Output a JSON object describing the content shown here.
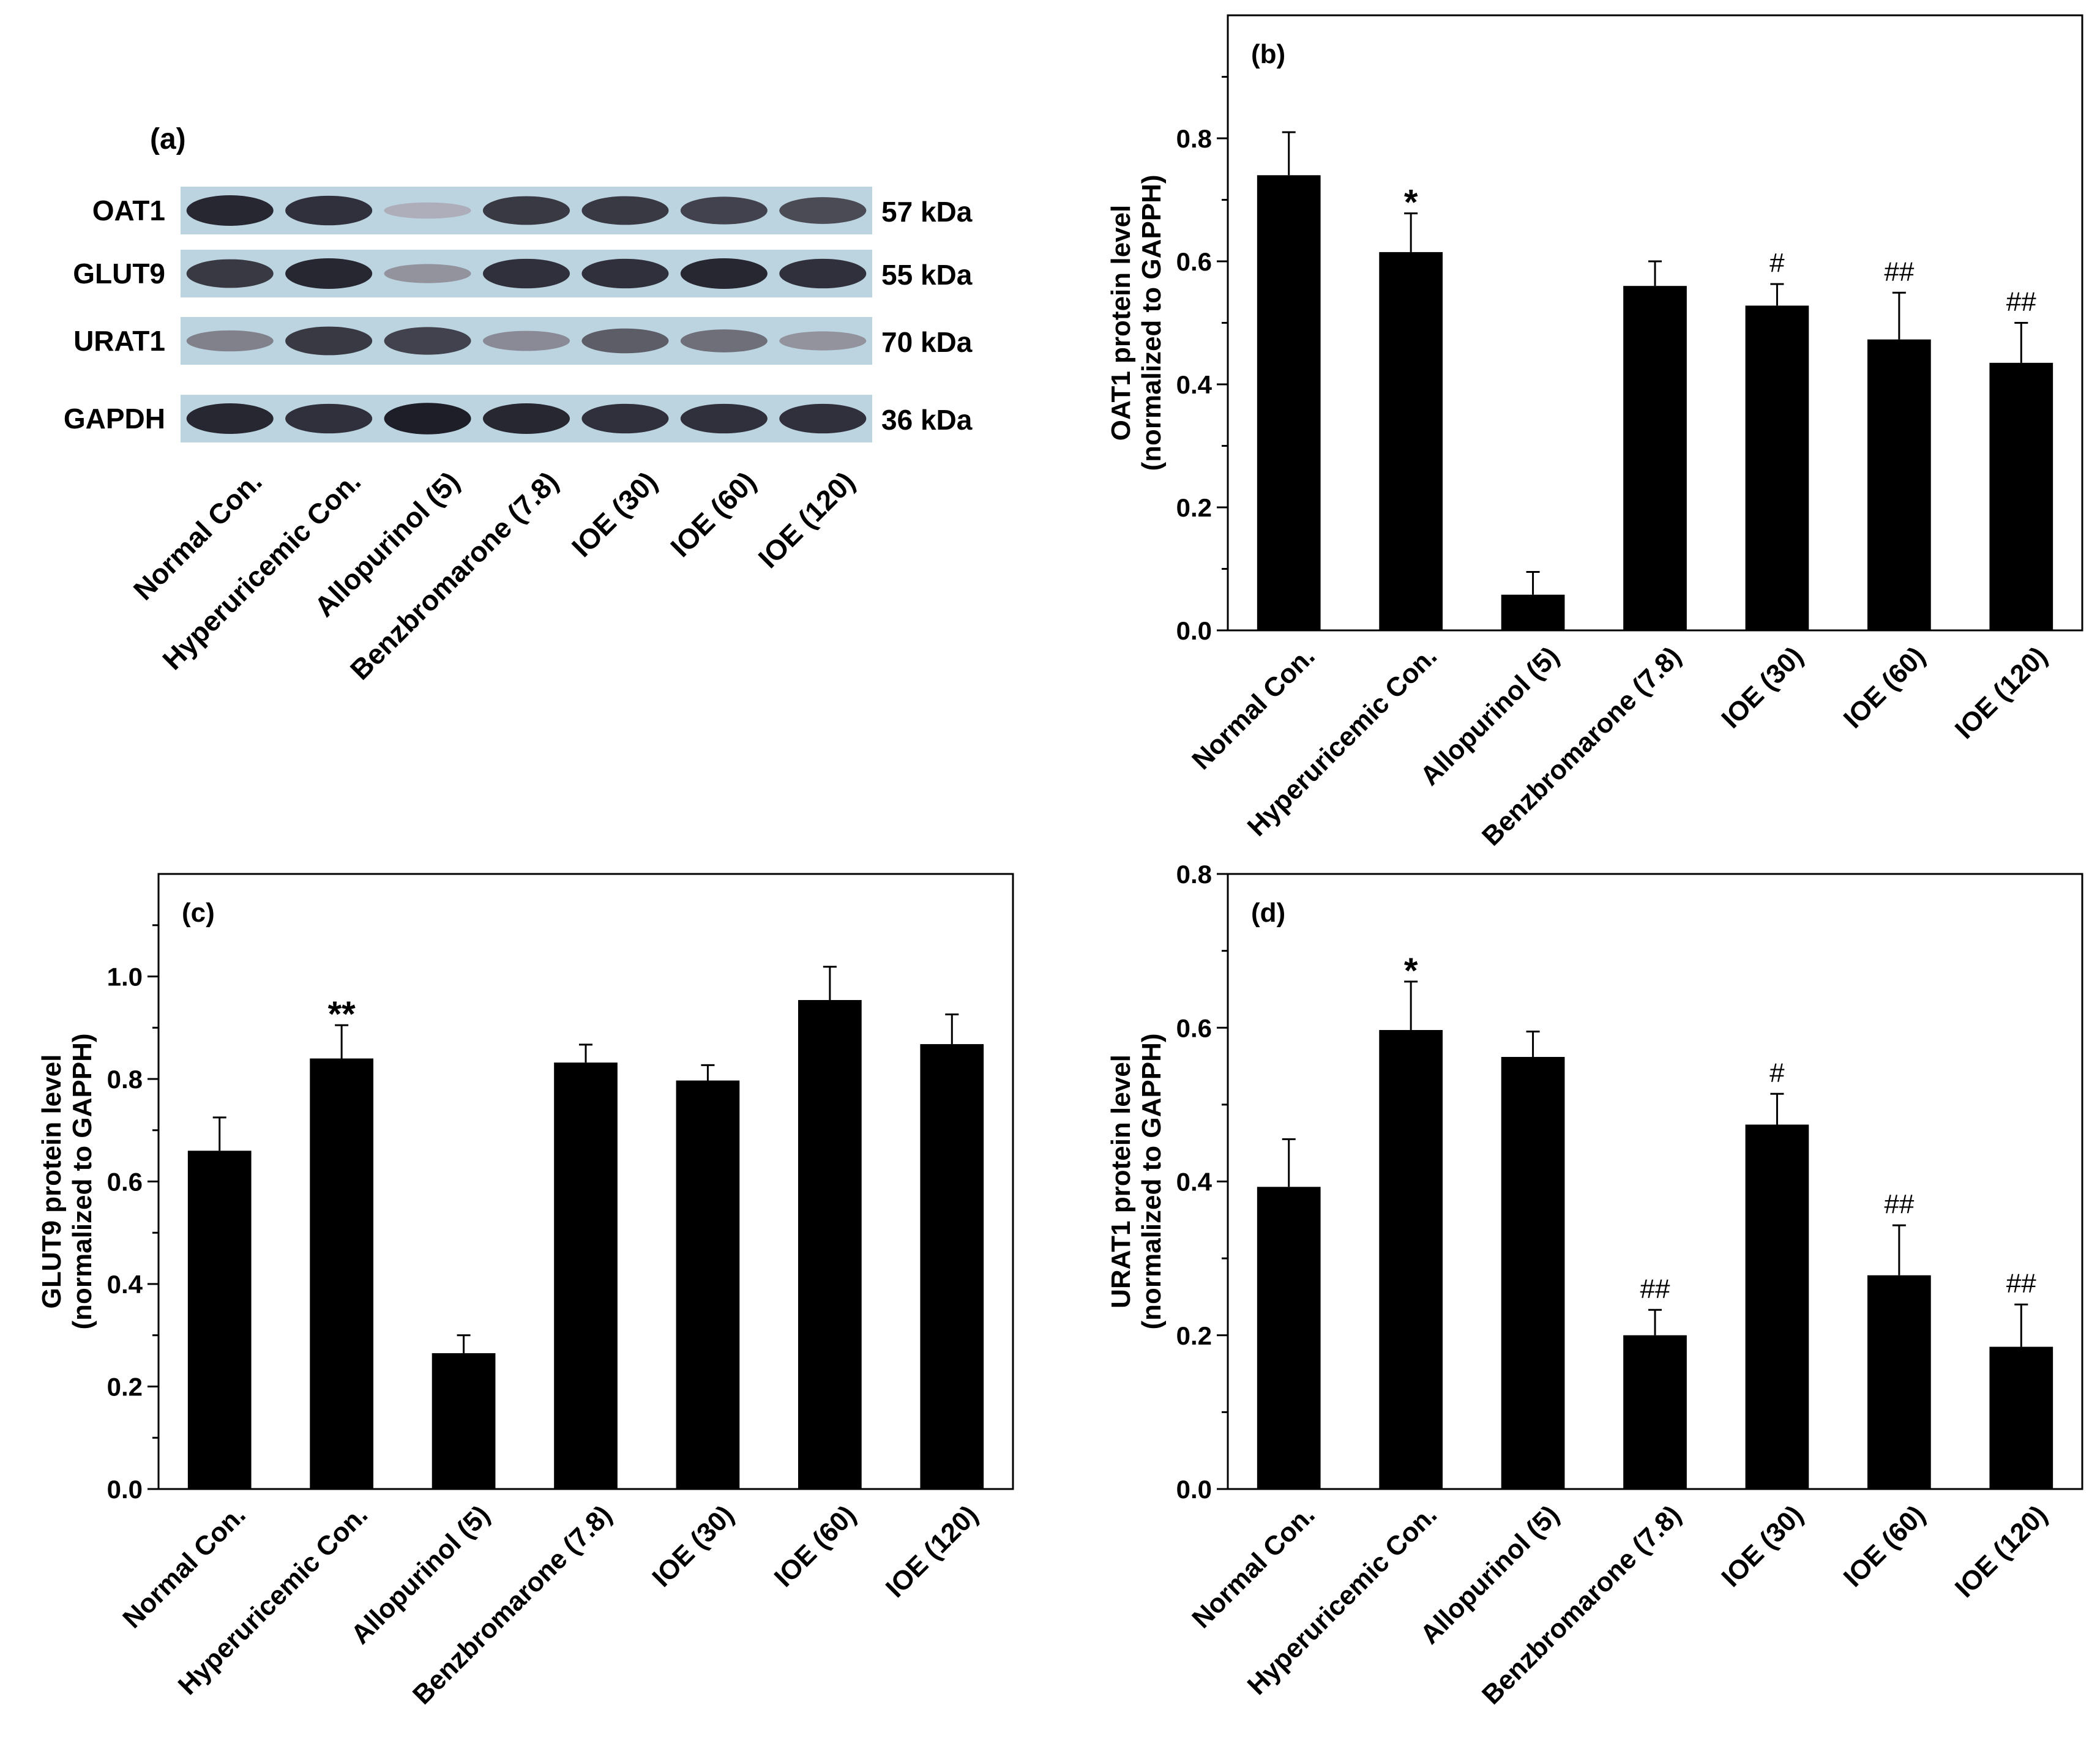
{
  "panel_a": {
    "label": "(a)",
    "categories": [
      "Normal Con.",
      "Hyperuricemic Con.",
      "Allopurinol  (5)",
      "Benzbromarone (7.8)",
      "IOE (30)",
      "IOE (60)",
      "IOE (120)"
    ],
    "rows": [
      {
        "protein": "OAT1",
        "size": "57 kDa",
        "intensity": [
          0.9,
          0.85,
          0.15,
          0.8,
          0.8,
          0.75,
          0.7
        ]
      },
      {
        "protein": "GLUT9",
        "size": "55 kDa",
        "intensity": [
          0.8,
          0.9,
          0.3,
          0.85,
          0.85,
          0.9,
          0.85
        ]
      },
      {
        "protein": "URAT1",
        "size": "70 kDa",
        "intensity": [
          0.4,
          0.8,
          0.75,
          0.35,
          0.6,
          0.5,
          0.3
        ]
      },
      {
        "protein": "GAPDH",
        "size": "36 kDa",
        "intensity": [
          0.9,
          0.85,
          0.95,
          0.9,
          0.85,
          0.85,
          0.85
        ]
      }
    ]
  },
  "chart_data": [
    {
      "type": "bar",
      "panel": "(b)",
      "ylabel_line1": "OAT1 protein level",
      "ylabel_line2": "(normalized to GAPPH)",
      "categories": [
        "Normal Con.",
        "Hyperuricemic Con.",
        "Allopurinol (5)",
        "Benzbromarone (7.8)",
        "IOE (30)",
        "IOE (60)",
        "IOE (120)"
      ],
      "values": [
        0.74,
        0.615,
        0.058,
        0.56,
        0.528,
        0.473,
        0.435
      ],
      "errors": [
        0.07,
        0.063,
        0.037,
        0.04,
        0.035,
        0.076,
        0.065
      ],
      "annotations": [
        "",
        "*",
        "",
        "",
        "#",
        "##",
        "##"
      ],
      "ylim": [
        0,
        1.0
      ],
      "yticks": [
        "0.0",
        "0.2",
        "0.4",
        "0.6",
        "0.8"
      ]
    },
    {
      "type": "bar",
      "panel": "(c)",
      "ylabel_line1": "GLUT9 protein level",
      "ylabel_line2": "(normalized to GAPPH)",
      "categories": [
        "Normal Con.",
        "Hyperuricemic Con.",
        "Allopurinol (5)",
        "Benzbromarone (7.8)",
        "IOE (30)",
        "IOE (60)",
        "IOE (120)"
      ],
      "values": [
        0.66,
        0.84,
        0.265,
        0.832,
        0.797,
        0.954,
        0.868
      ],
      "errors": [
        0.065,
        0.065,
        0.035,
        0.035,
        0.03,
        0.065,
        0.058
      ],
      "annotations": [
        "",
        "**",
        "",
        "",
        "",
        "",
        ""
      ],
      "ylim": [
        0,
        1.2
      ],
      "yticks": [
        "0.0",
        "0.2",
        "0.4",
        "0.6",
        "0.8",
        "1.0"
      ]
    },
    {
      "type": "bar",
      "panel": "(d)",
      "ylabel_line1": "URAT1 protein level",
      "ylabel_line2": "(normalized to GAPPH)",
      "categories": [
        "Normal Con.",
        "Hyperuricemic Con.",
        "Allopurinol (5)",
        "Benzbromarone (7.8)",
        "IOE (30)",
        "IOE (60)",
        "IOE (120)"
      ],
      "values": [
        0.393,
        0.597,
        0.562,
        0.2,
        0.474,
        0.278,
        0.185
      ],
      "errors": [
        0.062,
        0.063,
        0.033,
        0.033,
        0.04,
        0.065,
        0.055
      ],
      "annotations": [
        "",
        "*",
        "",
        "##",
        "#",
        "##",
        "##"
      ],
      "ylim": [
        0,
        0.8
      ],
      "yticks": [
        "0.0",
        "0.2",
        "0.4",
        "0.6",
        "0.8"
      ]
    }
  ]
}
